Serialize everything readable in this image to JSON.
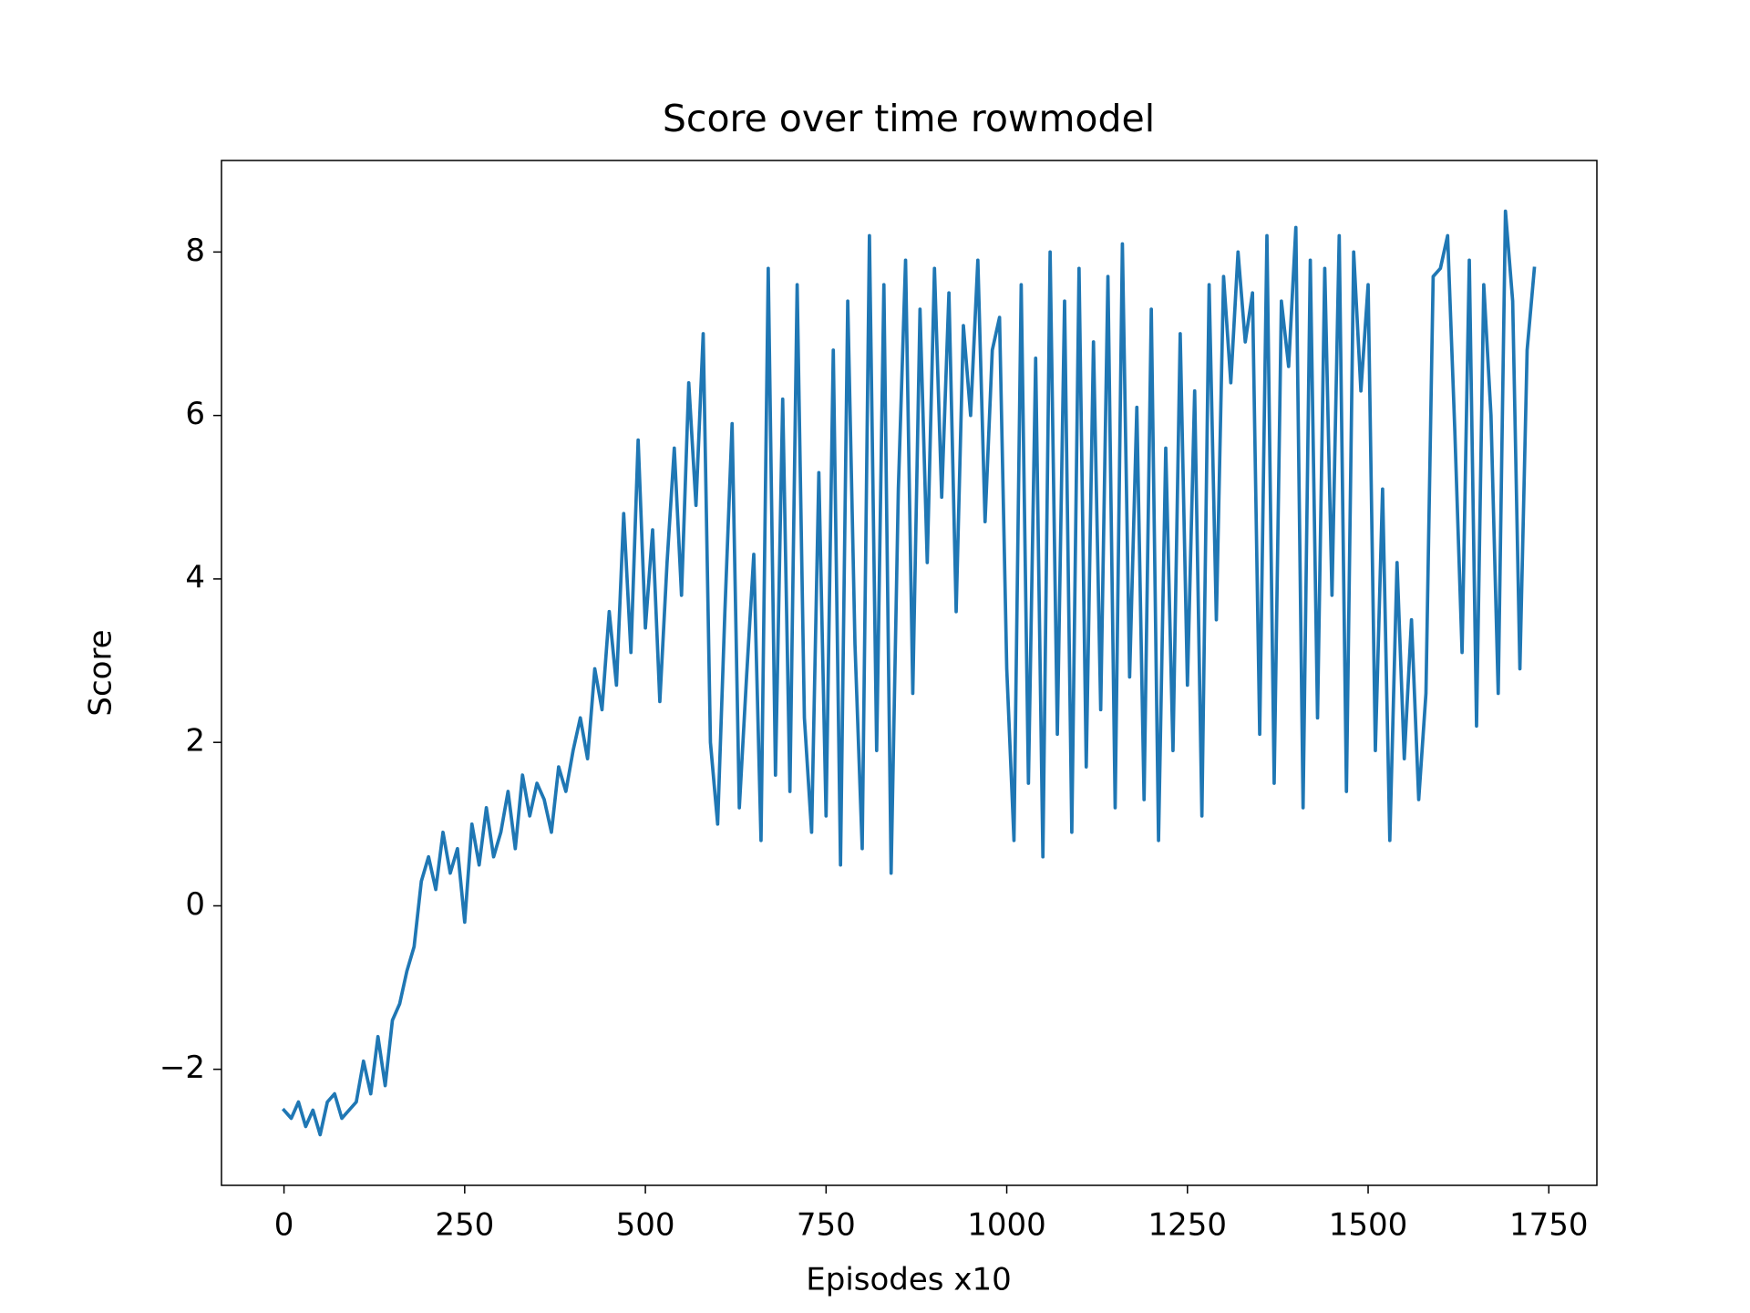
{
  "chart_data": {
    "type": "line",
    "title": "Score over time rowmodel",
    "x_label": "Episodes x10",
    "y_label": "Score",
    "color": "#1f77b4",
    "x": [
      0,
      10,
      20,
      30,
      40,
      50,
      60,
      70,
      80,
      90,
      100,
      110,
      120,
      130,
      140,
      150,
      160,
      170,
      180,
      190,
      200,
      210,
      220,
      230,
      240,
      250,
      260,
      270,
      280,
      290,
      300,
      310,
      320,
      330,
      340,
      350,
      360,
      370,
      380,
      390,
      400,
      410,
      420,
      430,
      440,
      450,
      460,
      470,
      480,
      490,
      500,
      510,
      520,
      530,
      540,
      550,
      560,
      570,
      580,
      590,
      600,
      610,
      620,
      630,
      640,
      650,
      660,
      670,
      680,
      690,
      700,
      710,
      720,
      730,
      740,
      750,
      760,
      770,
      780,
      790,
      800,
      810,
      820,
      830,
      840,
      850,
      860,
      870,
      880,
      890,
      900,
      910,
      920,
      930,
      940,
      950,
      960,
      970,
      980,
      990,
      1000,
      1010,
      1020,
      1030,
      1040,
      1050,
      1060,
      1070,
      1080,
      1090,
      1100,
      1110,
      1120,
      1130,
      1140,
      1150,
      1160,
      1170,
      1180,
      1190,
      1200,
      1210,
      1220,
      1230,
      1240,
      1250,
      1260,
      1270,
      1280,
      1290,
      1300,
      1310,
      1320,
      1330,
      1340,
      1350,
      1360,
      1370,
      1380,
      1390,
      1400,
      1410,
      1420,
      1430,
      1440,
      1450,
      1460,
      1470,
      1480,
      1490,
      1500,
      1510,
      1520,
      1530,
      1540,
      1550,
      1560,
      1570,
      1580,
      1590,
      1600,
      1610,
      1620,
      1630,
      1640,
      1650,
      1660,
      1670,
      1680,
      1690,
      1700,
      1710,
      1720,
      1730
    ],
    "values": [
      -2.5,
      -2.6,
      -2.4,
      -2.7,
      -2.5,
      -2.8,
      -2.4,
      -2.3,
      -2.6,
      -2.5,
      -2.4,
      -1.9,
      -2.3,
      -1.6,
      -2.2,
      -1.4,
      -1.2,
      -0.8,
      -0.5,
      0.3,
      0.6,
      0.2,
      0.9,
      0.4,
      0.7,
      -0.2,
      1.0,
      0.5,
      1.2,
      0.6,
      0.9,
      1.4,
      0.7,
      1.6,
      1.1,
      1.5,
      1.3,
      0.9,
      1.7,
      1.4,
      1.9,
      2.3,
      1.8,
      2.9,
      2.4,
      3.6,
      2.7,
      4.8,
      3.1,
      5.7,
      3.4,
      4.6,
      2.5,
      4.2,
      5.6,
      3.8,
      6.4,
      4.9,
      7.0,
      2.0,
      1.0,
      3.6,
      5.9,
      1.2,
      2.8,
      4.3,
      0.8,
      7.8,
      1.6,
      6.2,
      1.4,
      7.6,
      2.3,
      0.9,
      5.3,
      1.1,
      6.8,
      0.5,
      7.4,
      3.2,
      0.7,
      8.2,
      1.9,
      7.6,
      0.4,
      5.1,
      7.9,
      2.6,
      7.3,
      4.2,
      7.8,
      5.0,
      7.5,
      3.6,
      7.1,
      6.0,
      7.9,
      4.7,
      6.8,
      7.2,
      2.9,
      0.8,
      7.6,
      1.5,
      6.7,
      0.6,
      8.0,
      2.1,
      7.4,
      0.9,
      7.8,
      1.7,
      6.9,
      2.4,
      7.7,
      1.2,
      8.1,
      2.8,
      6.1,
      1.3,
      7.3,
      0.8,
      5.6,
      1.9,
      7.0,
      2.7,
      6.3,
      1.1,
      7.6,
      3.5,
      7.7,
      6.4,
      8.0,
      6.9,
      7.5,
      2.1,
      8.2,
      1.5,
      7.4,
      6.6,
      8.3,
      1.2,
      7.9,
      2.3,
      7.8,
      3.8,
      8.2,
      1.4,
      8.0,
      6.3,
      7.6,
      1.9,
      5.1,
      0.8,
      4.2,
      1.8,
      3.5,
      1.3,
      2.6,
      7.7,
      7.8,
      8.2,
      5.8,
      3.1,
      7.9,
      2.2,
      7.6,
      6.0,
      2.6,
      8.5,
      7.4,
      2.9,
      6.8,
      7.8
    ],
    "xlim": [
      -86.5,
      1816.5
    ],
    "ylim": [
      -3.42,
      9.12
    ],
    "xticks": [
      0,
      250,
      500,
      750,
      1000,
      1250,
      1500,
      1750
    ],
    "yticks": [
      {
        "value": -2,
        "label": "−2"
      },
      0,
      2,
      4,
      6,
      8
    ]
  }
}
